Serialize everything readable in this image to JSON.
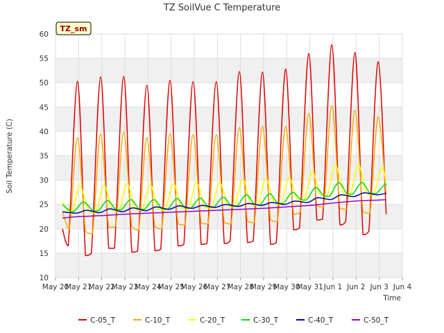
{
  "chart_data": {
    "type": "line",
    "title": "TZ SoilVue C Temperature",
    "xlabel": "Time",
    "ylabel": "Soil Temperature (C)",
    "site_tag": "TZ_sm",
    "ylim": [
      10,
      60
    ],
    "yticks": [
      10,
      15,
      20,
      25,
      30,
      35,
      40,
      45,
      50,
      55,
      60
    ],
    "xlim": [
      0,
      15
    ],
    "xtick_positions": [
      0,
      1,
      2,
      3,
      4,
      5,
      6,
      7,
      8,
      9,
      10,
      11,
      12,
      13,
      14,
      15
    ],
    "xtick_labels": [
      "May 20",
      "May 21",
      "May 22",
      "May 23",
      "May 24",
      "May 25",
      "May 26",
      "May 27",
      "May 28",
      "May 29",
      "May 30",
      "May 31",
      "Jun 1",
      "Jun 2",
      "Jun 3",
      "Jun 4"
    ],
    "grid": true,
    "legend_position": "bottom",
    "series": [
      {
        "name": "C-05_T",
        "color": "#dd0000",
        "x": [
          0.3,
          0.55,
          0.95,
          1.3,
          1.55,
          1.95,
          2.3,
          2.55,
          2.95,
          3.3,
          3.55,
          3.95,
          4.3,
          4.55,
          4.95,
          5.3,
          5.55,
          5.95,
          6.3,
          6.55,
          6.95,
          7.3,
          7.55,
          7.95,
          8.3,
          8.55,
          8.95,
          9.3,
          9.55,
          9.95,
          10.3,
          10.55,
          10.95,
          11.3,
          11.55,
          11.95,
          12.3,
          12.55,
          12.95,
          13.3,
          13.55,
          13.95,
          14.3
        ],
        "y": [
          20,
          16.5,
          50.3,
          14.5,
          15,
          51.2,
          16,
          16,
          51.3,
          15.2,
          15.4,
          49.5,
          15.5,
          15.8,
          50.5,
          16.5,
          16.8,
          50.2,
          16.8,
          17,
          50.2,
          17.0,
          17.5,
          52.3,
          17.2,
          17.5,
          52.2,
          16.8,
          17.2,
          52.8,
          19.8,
          20.2,
          56,
          21.8,
          22,
          57.8,
          20.8,
          21.5,
          56.2,
          18.8,
          19.5,
          54.3,
          23
        ]
      },
      {
        "name": "C-10_T",
        "color": "#ffa500",
        "x": [
          0.3,
          0.6,
          0.95,
          1.3,
          1.6,
          1.95,
          2.3,
          2.6,
          2.95,
          3.3,
          3.6,
          3.95,
          4.3,
          4.6,
          4.95,
          5.3,
          5.6,
          5.95,
          6.3,
          6.6,
          6.95,
          7.3,
          7.6,
          7.95,
          8.3,
          8.6,
          8.95,
          9.3,
          9.6,
          9.95,
          10.3,
          10.6,
          10.95,
          11.3,
          11.6,
          11.95,
          12.3,
          12.6,
          12.95,
          13.3,
          13.6,
          13.95,
          14.3
        ],
        "y": [
          23.5,
          20,
          38.7,
          19.5,
          19,
          39.5,
          20.3,
          20.5,
          39.8,
          20.5,
          19.8,
          38.7,
          20.5,
          20,
          39.5,
          21,
          20.8,
          39.3,
          21.2,
          21,
          39.3,
          21.3,
          21,
          40.8,
          21.5,
          21.3,
          41,
          21.8,
          21.5,
          41,
          23,
          23.5,
          43.7,
          24.8,
          24.5,
          45.3,
          24.2,
          24,
          44.3,
          23.5,
          23.2,
          43,
          27
        ]
      },
      {
        "name": "C-20_T",
        "color": "#ffff00",
        "x": [
          0.3,
          0.7,
          1.05,
          1.45,
          1.75,
          2.1,
          2.45,
          2.75,
          3.1,
          3.45,
          3.75,
          4.1,
          4.45,
          4.75,
          5.1,
          5.45,
          5.75,
          6.1,
          6.45,
          6.75,
          7.1,
          7.45,
          7.75,
          8.1,
          8.45,
          8.75,
          9.1,
          9.45,
          9.75,
          10.1,
          10.45,
          10.75,
          11.1,
          11.45,
          11.75,
          12.1,
          12.45,
          12.75,
          13.1,
          13.45,
          13.75,
          14.1,
          14.3
        ],
        "y": [
          25.5,
          23,
          28.8,
          23.5,
          23.2,
          29,
          23.8,
          23.5,
          29.3,
          24,
          23.8,
          29,
          24,
          23.8,
          29.3,
          24.3,
          24,
          29.5,
          24.5,
          24.2,
          29.5,
          24.8,
          24.5,
          30.2,
          25,
          24.8,
          30.3,
          25.3,
          25,
          30.5,
          26,
          25.8,
          31.8,
          27,
          26.8,
          33.2,
          27.3,
          27,
          33.2,
          27.3,
          27,
          32.5,
          30
        ]
      },
      {
        "name": "C-30_T",
        "color": "#00dd00",
        "x": [
          0.3,
          0.75,
          1.2,
          1.6,
          1.85,
          2.25,
          2.6,
          2.85,
          3.25,
          3.6,
          3.85,
          4.25,
          4.6,
          4.85,
          5.25,
          5.6,
          5.85,
          6.25,
          6.6,
          6.85,
          7.25,
          7.6,
          7.85,
          8.25,
          8.6,
          8.85,
          9.25,
          9.6,
          9.85,
          10.25,
          10.6,
          10.85,
          11.25,
          11.6,
          11.85,
          12.25,
          12.6,
          12.85,
          13.25,
          13.6,
          13.85,
          14.25,
          14.3
        ],
        "y": [
          25,
          23.5,
          25.5,
          23.8,
          23.7,
          25.8,
          24,
          23.9,
          26,
          24.1,
          24,
          26,
          24.1,
          24,
          26.2,
          24.3,
          24.2,
          26.3,
          24.5,
          24.4,
          26.5,
          24.7,
          24.6,
          27,
          25,
          24.9,
          27.2,
          25.3,
          25.2,
          27.5,
          26,
          25.9,
          28.5,
          26.8,
          26.7,
          29.5,
          27.2,
          27.1,
          29.5,
          27.3,
          27.2,
          29.2,
          29
        ]
      },
      {
        "name": "C-40_T",
        "color": "#0000aa",
        "x": [
          0.3,
          0.9,
          1.35,
          1.9,
          2.35,
          2.9,
          3.35,
          3.9,
          4.35,
          4.9,
          5.35,
          5.9,
          6.35,
          6.9,
          7.35,
          7.9,
          8.35,
          8.9,
          9.35,
          9.9,
          10.35,
          10.9,
          11.35,
          11.9,
          12.35,
          12.9,
          13.35,
          13.9,
          14.3
        ],
        "y": [
          23.5,
          23.2,
          23.8,
          23.3,
          24.1,
          23.5,
          24.3,
          23.7,
          24.5,
          24,
          24.7,
          24.2,
          24.8,
          24.4,
          25,
          24.6,
          25.2,
          24.8,
          25.4,
          25,
          25.7,
          25.4,
          26.4,
          26,
          27,
          26.6,
          27.4,
          27,
          27.3
        ]
      },
      {
        "name": "C-50_T",
        "color": "#9900cc",
        "x": [
          0.3,
          1,
          2,
          3,
          4,
          5,
          6,
          7,
          8,
          9,
          10,
          11,
          12,
          13,
          14,
          14.3
        ],
        "y": [
          22.2,
          22.5,
          22.7,
          23,
          23.2,
          23.4,
          23.6,
          23.8,
          24.0,
          24.2,
          24.5,
          24.8,
          25.3,
          25.7,
          25.9,
          26
        ]
      }
    ]
  }
}
